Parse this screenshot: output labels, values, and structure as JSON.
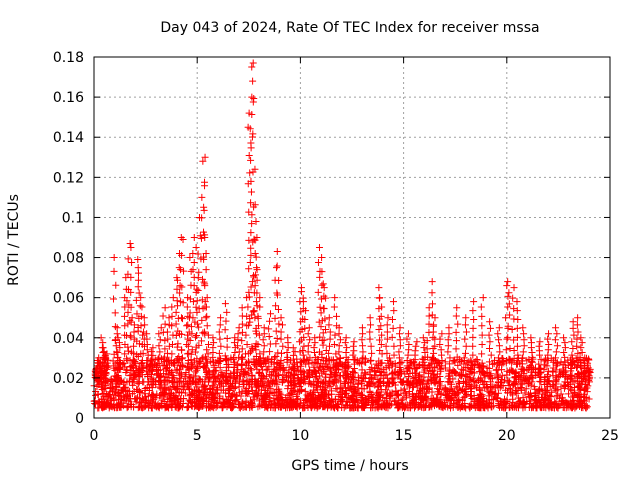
{
  "chart_data": {
    "type": "scatter",
    "title": "Day 043 of 2024, Rate Of TEC Index for receiver mssa",
    "xlabel": "GPS time / hours",
    "ylabel": "ROTI / TECUs",
    "xlim": [
      0,
      25
    ],
    "ylim": [
      0,
      0.18
    ],
    "xticks": [
      0,
      5,
      10,
      15,
      20,
      25
    ],
    "xtick_labels": [
      "0",
      "5",
      "10",
      "15",
      "20",
      "25"
    ],
    "yticks": [
      0,
      0.02,
      0.04,
      0.06,
      0.08,
      0.1,
      0.12,
      0.14,
      0.16,
      0.18
    ],
    "ytick_labels": [
      "0",
      "0.02",
      "0.04",
      "0.06",
      "0.08",
      "0.1",
      "0.12",
      "0.14",
      "0.16",
      "0.18"
    ],
    "grid": true,
    "marker": "+",
    "color": "#ff0000",
    "series": [
      {
        "name": "ROTI",
        "baseline_band": [
          0.005,
          0.03
        ],
        "points": [
          [
            0.1,
            0.025
          ],
          [
            0.2,
            0.03
          ],
          [
            0.3,
            0.028
          ],
          [
            0.4,
            0.04
          ],
          [
            0.5,
            0.035
          ],
          [
            0.6,
            0.032
          ],
          [
            1.0,
            0.08
          ],
          [
            1.1,
            0.045
          ],
          [
            1.2,
            0.04
          ],
          [
            1.5,
            0.06
          ],
          [
            1.6,
            0.07
          ],
          [
            1.7,
            0.087
          ],
          [
            1.8,
            0.085
          ],
          [
            1.9,
            0.05
          ],
          [
            2.1,
            0.079
          ],
          [
            2.2,
            0.075
          ],
          [
            2.3,
            0.06
          ],
          [
            2.4,
            0.05
          ],
          [
            2.6,
            0.042
          ],
          [
            2.8,
            0.035
          ],
          [
            3.2,
            0.045
          ],
          [
            3.4,
            0.055
          ],
          [
            3.6,
            0.05
          ],
          [
            3.8,
            0.06
          ],
          [
            4.0,
            0.07
          ],
          [
            4.1,
            0.075
          ],
          [
            4.2,
            0.09
          ],
          [
            4.3,
            0.089
          ],
          [
            4.5,
            0.06
          ],
          [
            4.6,
            0.05
          ],
          [
            4.7,
            0.08
          ],
          [
            4.8,
            0.09
          ],
          [
            4.9,
            0.085
          ],
          [
            5.0,
            0.07
          ],
          [
            5.1,
            0.1
          ],
          [
            5.2,
            0.11
          ],
          [
            5.3,
            0.128
          ],
          [
            5.35,
            0.13
          ],
          [
            5.4,
            0.09
          ],
          [
            5.5,
            0.06
          ],
          [
            5.8,
            0.04
          ],
          [
            6.1,
            0.05
          ],
          [
            6.4,
            0.057
          ],
          [
            6.8,
            0.04
          ],
          [
            7.0,
            0.045
          ],
          [
            7.2,
            0.055
          ],
          [
            7.4,
            0.06
          ],
          [
            7.5,
            0.145
          ],
          [
            7.55,
            0.152
          ],
          [
            7.6,
            0.16
          ],
          [
            7.65,
            0.168
          ],
          [
            7.7,
            0.175
          ],
          [
            7.75,
            0.177
          ],
          [
            7.8,
            0.098
          ],
          [
            7.85,
            0.09
          ],
          [
            7.9,
            0.075
          ],
          [
            8.0,
            0.06
          ],
          [
            8.2,
            0.045
          ],
          [
            8.5,
            0.052
          ],
          [
            8.8,
            0.075
          ],
          [
            8.9,
            0.083
          ],
          [
            9.1,
            0.05
          ],
          [
            9.4,
            0.04
          ],
          [
            9.7,
            0.035
          ],
          [
            10.0,
            0.063
          ],
          [
            10.1,
            0.065
          ],
          [
            10.2,
            0.058
          ],
          [
            10.4,
            0.045
          ],
          [
            10.7,
            0.04
          ],
          [
            10.9,
            0.085
          ],
          [
            11.0,
            0.08
          ],
          [
            11.1,
            0.073
          ],
          [
            11.2,
            0.065
          ],
          [
            11.4,
            0.05
          ],
          [
            11.7,
            0.06
          ],
          [
            11.9,
            0.045
          ],
          [
            12.2,
            0.04
          ],
          [
            12.6,
            0.038
          ],
          [
            13.0,
            0.045
          ],
          [
            13.4,
            0.05
          ],
          [
            13.8,
            0.065
          ],
          [
            13.9,
            0.06
          ],
          [
            14.2,
            0.05
          ],
          [
            14.5,
            0.058
          ],
          [
            14.8,
            0.045
          ],
          [
            15.2,
            0.042
          ],
          [
            15.6,
            0.038
          ],
          [
            16.0,
            0.04
          ],
          [
            16.2,
            0.055
          ],
          [
            16.4,
            0.068
          ],
          [
            16.5,
            0.05
          ],
          [
            16.8,
            0.042
          ],
          [
            17.2,
            0.045
          ],
          [
            17.6,
            0.055
          ],
          [
            18.0,
            0.05
          ],
          [
            18.4,
            0.058
          ],
          [
            18.8,
            0.06
          ],
          [
            19.2,
            0.048
          ],
          [
            19.6,
            0.045
          ],
          [
            20.0,
            0.066
          ],
          [
            20.1,
            0.068
          ],
          [
            20.3,
            0.065
          ],
          [
            20.5,
            0.058
          ],
          [
            20.8,
            0.045
          ],
          [
            21.2,
            0.04
          ],
          [
            21.6,
            0.038
          ],
          [
            22.0,
            0.042
          ],
          [
            22.4,
            0.045
          ],
          [
            22.8,
            0.04
          ],
          [
            23.2,
            0.048
          ],
          [
            23.4,
            0.05
          ],
          [
            23.6,
            0.04
          ],
          [
            23.8,
            0.03
          ],
          [
            24.0,
            0.025
          ]
        ]
      }
    ]
  }
}
